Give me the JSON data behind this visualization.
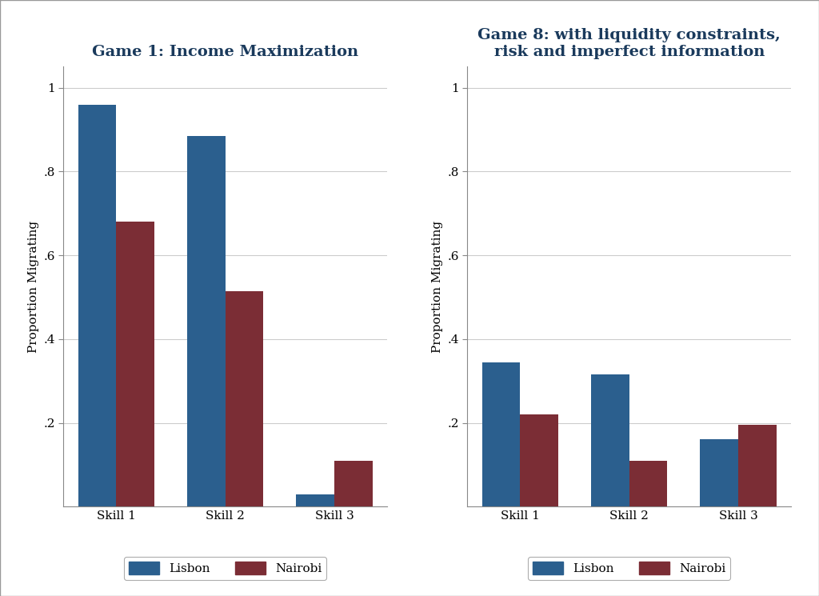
{
  "game1": {
    "title": "Game 1: Income Maximization",
    "categories": [
      "Skill 1",
      "Skill 2",
      "Skill 3"
    ],
    "lisbon": [
      0.96,
      0.885,
      0.03
    ],
    "nairobi": [
      0.68,
      0.515,
      0.11
    ],
    "ylim": [
      0,
      1.05
    ],
    "yticks": [
      0.2,
      0.4,
      0.6,
      0.8,
      1.0
    ],
    "ytick_labels": [
      ".2",
      ".4",
      ".6",
      ".8",
      "1"
    ]
  },
  "game8": {
    "title": "Game 8: with liquidity constraints,\nrisk and imperfect information",
    "categories": [
      "Skill 1",
      "Skill 2",
      "Skill 3"
    ],
    "lisbon": [
      0.345,
      0.315,
      0.16
    ],
    "nairobi": [
      0.22,
      0.11,
      0.195
    ],
    "ylim": [
      0,
      1.05
    ],
    "yticks": [
      0.2,
      0.4,
      0.6,
      0.8,
      1.0
    ],
    "ytick_labels": [
      ".2",
      ".4",
      ".6",
      ".8",
      "1"
    ]
  },
  "lisbon_color": "#2B5F8E",
  "nairobi_color": "#7B2D35",
  "ylabel": "Proportion Migrating",
  "legend_labels": [
    "Lisbon",
    "Nairobi"
  ],
  "bar_width": 0.35,
  "plot_bg_color": "#FFFFFF",
  "fig_bg_color": "#FFFFFF",
  "grid_color": "#CCCCCC",
  "spine_color": "#888888",
  "title_fontsize": 14,
  "axis_label_fontsize": 11,
  "tick_fontsize": 11,
  "legend_fontsize": 11
}
